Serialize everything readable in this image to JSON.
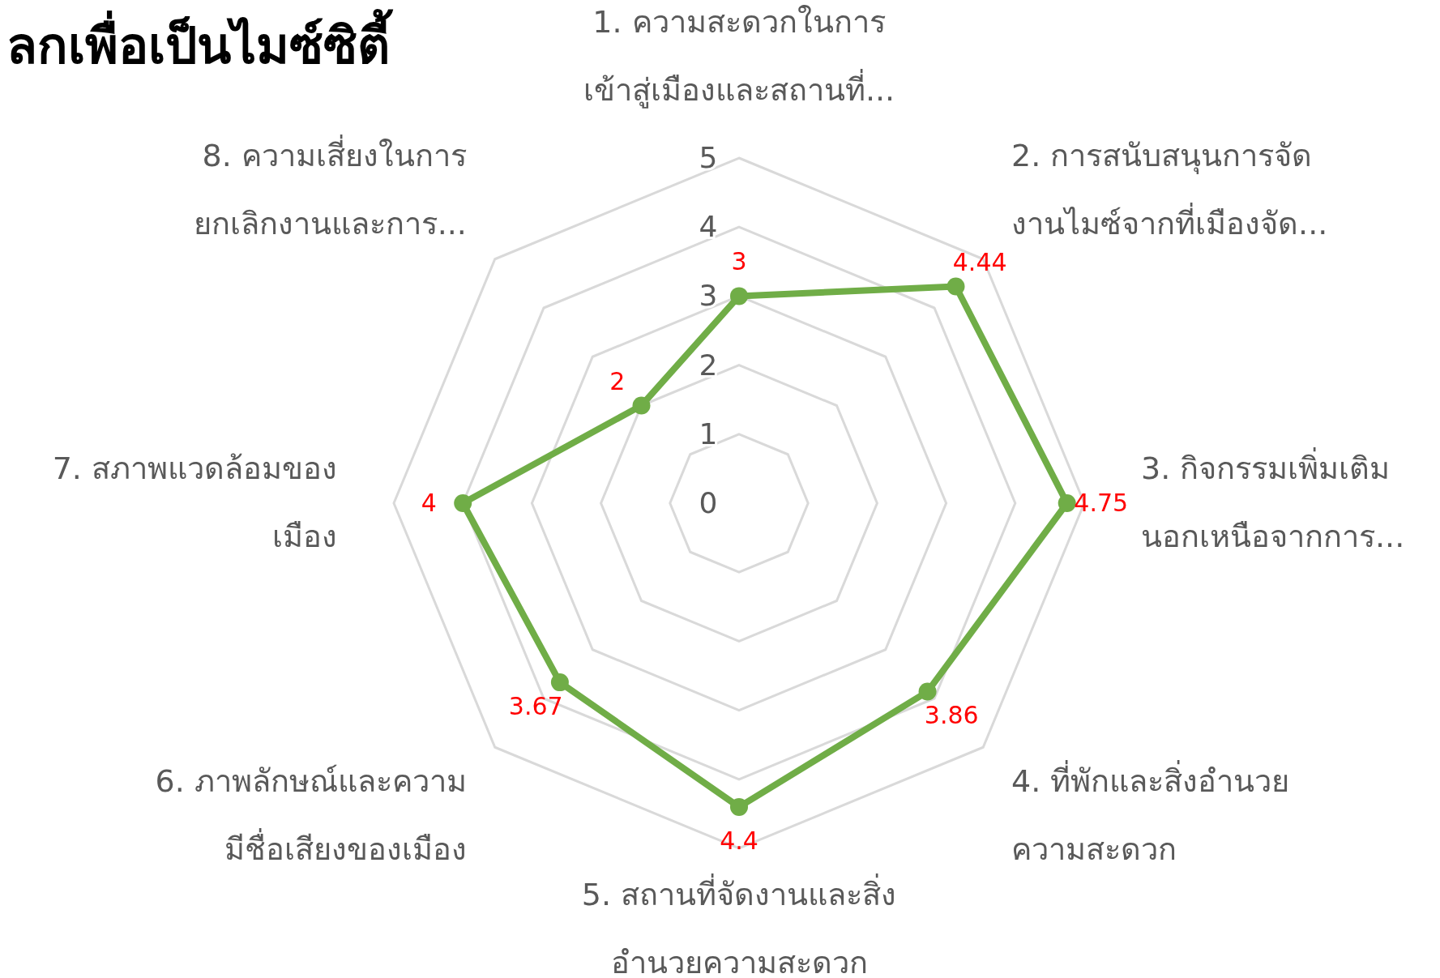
{
  "chart_data": {
    "type": "radar",
    "title": "ลกเพื่อเป็นไมซ์ซิตี้",
    "categories": [
      "1. ความสะดวกในการ\nเข้าสู่เมืองและสถานที่...",
      "2. การสนับสนุนการจัด\nงานไมซ์จากที่เมืองจัด...",
      "3. กิจกรรมเพิ่มเติม\nนอกเหนือจากการ...",
      "4. ที่พักและสิ่งอำนวย\nความสะดวก",
      "5. สถานที่จัดงานและสิ่ง\nอำนวยความสะดวก",
      "6. ภาพลักษณ์และความ\nมีชื่อเสียงของเมือง",
      "7. สภาพแวดล้อมของ\nเมือง",
      "8. ความเสี่ยงในการ\nยกเลิกงานและการ..."
    ],
    "series": [
      {
        "color": "#70ad47",
        "values": [
          3,
          4.44,
          4.75,
          3.86,
          4.4,
          3.67,
          4,
          2
        ]
      }
    ],
    "ylim": [
      0,
      5
    ],
    "yticks": [
      0,
      1,
      2,
      3,
      4,
      5
    ],
    "data_labels": true,
    "marker": "circle",
    "grid": true
  }
}
